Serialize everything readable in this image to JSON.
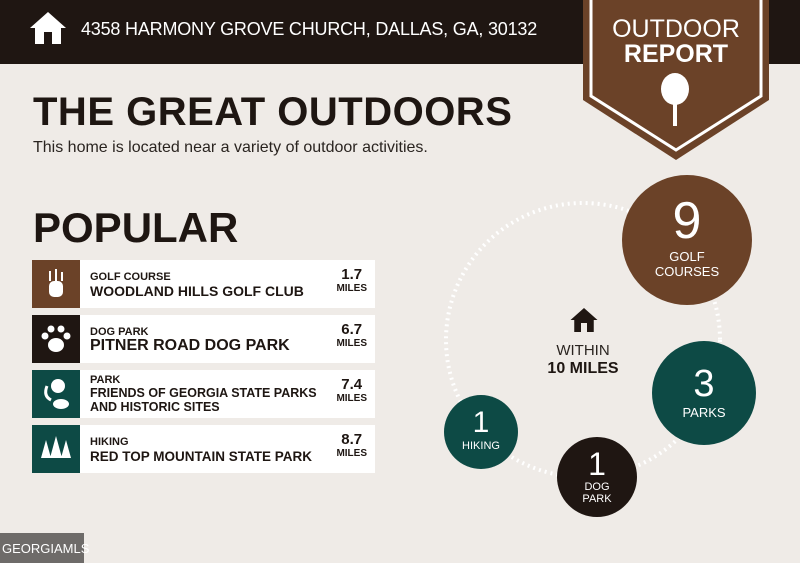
{
  "header": {
    "address": "4358 HARMONY GROVE CHURCH, DALLAS, GA, 30132",
    "badge_line1": "OUTDOOR",
    "badge_line2": "REPORT"
  },
  "main": {
    "title": "THE GREAT OUTDOORS",
    "subtitle": "This home is located near a variety of outdoor activities.",
    "popular_heading": "POPULAR"
  },
  "popular": [
    {
      "category": "GOLF COURSE",
      "name": "WOODLAND HILLS GOLF CLUB",
      "distance": "1.7",
      "unit": "MILES",
      "icon": "golf-bag-icon",
      "color": "#6b4228"
    },
    {
      "category": "DOG PARK",
      "name": "PITNER ROAD DOG PARK",
      "distance": "6.7",
      "unit": "MILES",
      "icon": "paw-icon",
      "color": "#1f1612"
    },
    {
      "category": "PARK",
      "name": "FRIENDS OF GEORGIA STATE PARKS AND HISTORIC SITES",
      "distance": "7.4",
      "unit": "MILES",
      "icon": "park-icon",
      "color": "#0d4a45"
    },
    {
      "category": "HIKING",
      "name": "RED TOP MOUNTAIN STATE PARK",
      "distance": "8.7",
      "unit": "MILES",
      "icon": "trees-icon",
      "color": "#0d4a45"
    }
  ],
  "summary": {
    "within_label": "WITHIN",
    "radius": "10 MILES",
    "counts": [
      {
        "count": "9",
        "label1": "GOLF",
        "label2": "COURSES",
        "color": "#6b4228"
      },
      {
        "count": "3",
        "label1": "PARKS",
        "label2": "",
        "color": "#0d4a45"
      },
      {
        "count": "1",
        "label1": "DOG",
        "label2": "PARK",
        "color": "#1f1612"
      },
      {
        "count": "1",
        "label1": "HIKING",
        "label2": "",
        "color": "#0d4a45"
      }
    ]
  },
  "footer": {
    "logo": "GEORGIAMLS"
  }
}
